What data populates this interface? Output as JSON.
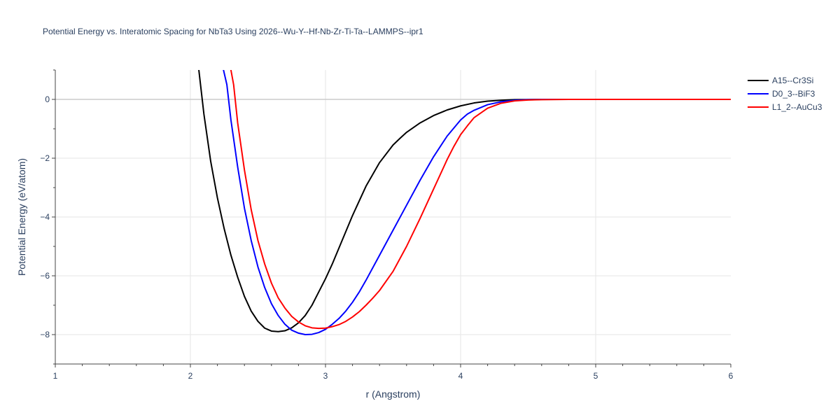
{
  "chart_data": {
    "type": "line",
    "title": "Potential Energy vs. Interatomic Spacing for NbTa3 Using 2026--Wu-Y--Hf-Nb-Zr-Ti-Ta--LAMMPS--ipr1",
    "xlabel": "r (Angstrom)",
    "ylabel": "Potential Energy (eV/atom)",
    "xlim": [
      1,
      6
    ],
    "ylim": [
      -9,
      1
    ],
    "x_ticks": [
      1,
      2,
      3,
      4,
      5,
      6
    ],
    "x_tick_labels": [
      "1",
      "2",
      "3",
      "4",
      "5",
      "6"
    ],
    "y_ticks": [
      0,
      -2,
      -4,
      -6,
      -8
    ],
    "y_tick_labels": [
      "0",
      "−2",
      "−4",
      "−6",
      "−8"
    ],
    "grid": true,
    "legend_position": "top-right",
    "series": [
      {
        "name": "A15--Cr3Si",
        "color": "#000000",
        "x": [
          2.05,
          2.1,
          2.15,
          2.2,
          2.25,
          2.3,
          2.35,
          2.4,
          2.45,
          2.5,
          2.55,
          2.6,
          2.65,
          2.7,
          2.75,
          2.8,
          2.85,
          2.9,
          2.95,
          3.0,
          3.05,
          3.1,
          3.15,
          3.2,
          3.3,
          3.4,
          3.5,
          3.55,
          3.6,
          3.7,
          3.8,
          3.9,
          4.0,
          4.1,
          4.2,
          4.3,
          4.4,
          4.5,
          4.6,
          5.0,
          6.0
        ],
        "y": [
          1.5,
          -0.5,
          -2.1,
          -3.35,
          -4.4,
          -5.3,
          -6.05,
          -6.7,
          -7.2,
          -7.55,
          -7.78,
          -7.88,
          -7.9,
          -7.87,
          -7.77,
          -7.6,
          -7.35,
          -7.0,
          -6.55,
          -6.1,
          -5.6,
          -5.05,
          -4.5,
          -3.95,
          -2.95,
          -2.15,
          -1.55,
          -1.33,
          -1.12,
          -0.8,
          -0.55,
          -0.36,
          -0.22,
          -0.12,
          -0.06,
          -0.03,
          -0.01,
          -0.005,
          0,
          0,
          0
        ]
      },
      {
        "name": "D0_3--BiF3",
        "color": "#0000ff",
        "x": [
          2.22,
          2.27,
          2.3,
          2.35,
          2.4,
          2.45,
          2.5,
          2.55,
          2.6,
          2.65,
          2.7,
          2.75,
          2.8,
          2.85,
          2.9,
          2.95,
          3.0,
          3.05,
          3.1,
          3.15,
          3.2,
          3.25,
          3.3,
          3.4,
          3.5,
          3.6,
          3.7,
          3.8,
          3.9,
          4.0,
          4.05,
          4.1,
          4.2,
          4.3,
          4.4,
          4.5,
          4.6,
          4.8,
          5.0,
          6.0
        ],
        "y": [
          1.5,
          0.5,
          -0.7,
          -2.3,
          -3.7,
          -4.8,
          -5.7,
          -6.4,
          -6.95,
          -7.35,
          -7.65,
          -7.85,
          -7.95,
          -8.0,
          -7.99,
          -7.93,
          -7.82,
          -7.65,
          -7.45,
          -7.2,
          -6.9,
          -6.55,
          -6.15,
          -5.3,
          -4.45,
          -3.6,
          -2.75,
          -1.95,
          -1.25,
          -0.7,
          -0.5,
          -0.37,
          -0.18,
          -0.08,
          -0.03,
          -0.01,
          0,
          0,
          0,
          0
        ]
      },
      {
        "name": "L1_2--AuCu3",
        "color": "#ff0000",
        "x": [
          2.28,
          2.32,
          2.35,
          2.4,
          2.45,
          2.5,
          2.55,
          2.6,
          2.65,
          2.7,
          2.75,
          2.8,
          2.85,
          2.9,
          2.95,
          3.0,
          3.05,
          3.1,
          3.15,
          3.2,
          3.25,
          3.3,
          3.35,
          3.4,
          3.5,
          3.6,
          3.7,
          3.8,
          3.9,
          3.95,
          4.0,
          4.05,
          4.1,
          4.2,
          4.3,
          4.4,
          4.5,
          4.6,
          4.8,
          5.0,
          6.0
        ],
        "y": [
          1.5,
          0.5,
          -0.8,
          -2.4,
          -3.75,
          -4.8,
          -5.6,
          -6.25,
          -6.75,
          -7.1,
          -7.38,
          -7.57,
          -7.7,
          -7.77,
          -7.79,
          -7.78,
          -7.73,
          -7.66,
          -7.55,
          -7.4,
          -7.22,
          -7.0,
          -6.76,
          -6.5,
          -5.85,
          -5.0,
          -4.05,
          -3.05,
          -2.05,
          -1.6,
          -1.2,
          -0.9,
          -0.62,
          -0.3,
          -0.13,
          -0.05,
          -0.02,
          -0.01,
          0,
          0,
          0
        ]
      }
    ]
  }
}
